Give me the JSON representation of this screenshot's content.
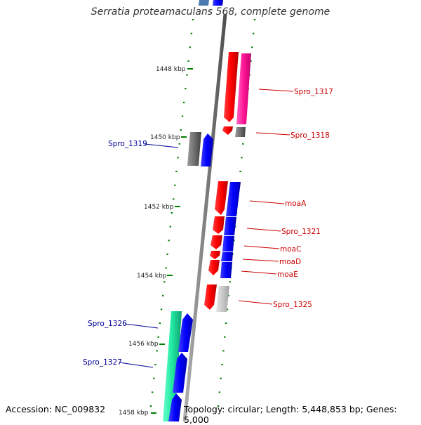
{
  "title": "Serratia proteamaculans 568, complete genome",
  "footer": {
    "accession": "Accession: NC_009832",
    "topology": "Topology: circular; Length: 5,448,853 bp; Genes: 5,000"
  },
  "scale": {
    "ticks": [
      {
        "label": "1448 kbp"
      },
      {
        "label": "1450 kbp"
      },
      {
        "label": "1452 kbp"
      },
      {
        "label": "1454 kbp"
      },
      {
        "label": "1456 kbp"
      },
      {
        "label": "1458 kbp"
      }
    ]
  },
  "genes": [
    {
      "name": "Spro_1317",
      "color": "#cc0000"
    },
    {
      "name": "Spro_1318",
      "color": "#cc0000"
    },
    {
      "name": "Spro_1319",
      "color": "#000099"
    },
    {
      "name": "moaA",
      "color": "#cc0000"
    },
    {
      "name": "Spro_1321",
      "color": "#cc0000"
    },
    {
      "name": "moaC",
      "color": "#cc0000"
    },
    {
      "name": "moaD",
      "color": "#cc0000"
    },
    {
      "name": "moaE",
      "color": "#cc0000"
    },
    {
      "name": "Spro_1325",
      "color": "#cc0000"
    },
    {
      "name": "Spro_1326",
      "color": "#000099"
    },
    {
      "name": "Spro_1327",
      "color": "#000099"
    }
  ]
}
